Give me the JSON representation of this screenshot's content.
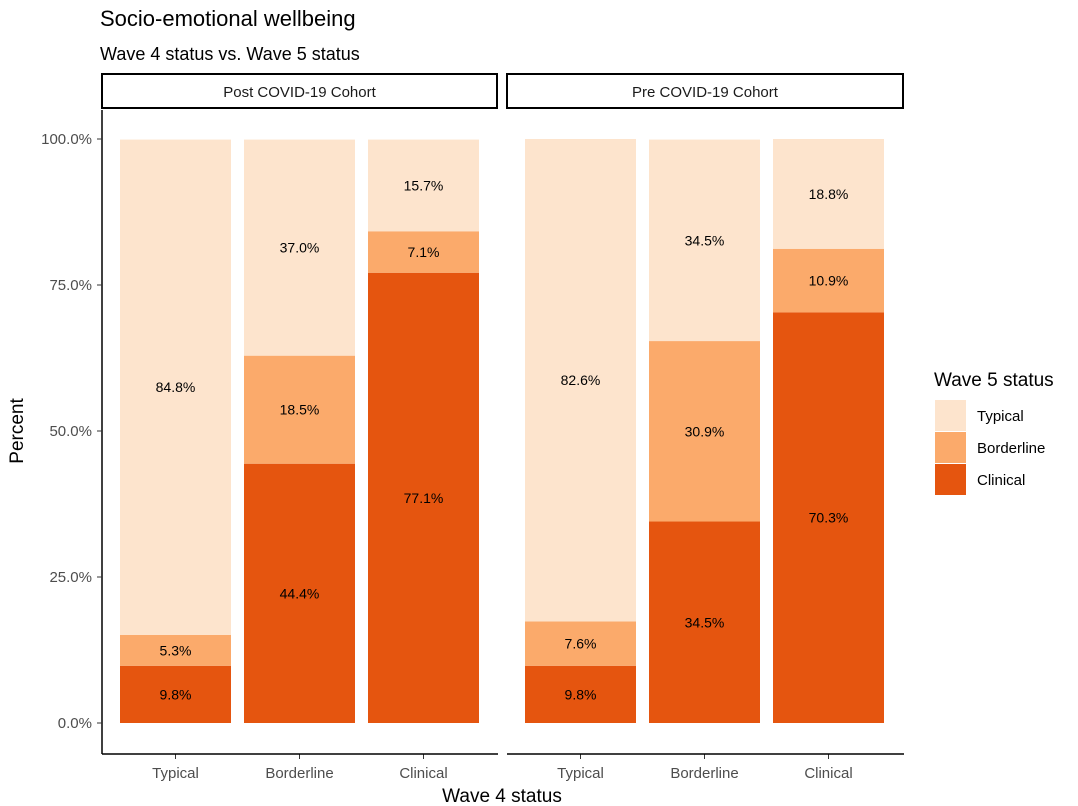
{
  "chart_data": {
    "type": "bar",
    "stacked": true,
    "title": "Socio-emotional wellbeing",
    "subtitle": "Wave 4 status vs. Wave 5 status",
    "xlabel": "Wave 4 status",
    "ylabel": "Percent",
    "ylim": [
      0,
      1
    ],
    "yticks": [
      "0.0%",
      "25.0%",
      "50.0%",
      "75.0%",
      "100.0%"
    ],
    "categories": [
      "Typical",
      "Borderline",
      "Clinical"
    ],
    "legend": {
      "title": "Wave 5 status",
      "position": "right",
      "entries": [
        "Typical",
        "Borderline",
        "Clinical"
      ]
    },
    "colors": {
      "Typical": "#fde4cd",
      "Borderline": "#fbaa6b",
      "Clinical": "#e5550f"
    },
    "grid": false,
    "panels": [
      {
        "name": "Post COVID-19 Cohort",
        "series": [
          {
            "name": "Clinical",
            "values": [
              0.098,
              0.444,
              0.771
            ],
            "labels": [
              "9.8%",
              "44.4%",
              "77.1%"
            ]
          },
          {
            "name": "Borderline",
            "values": [
              0.053,
              0.185,
              0.071
            ],
            "labels": [
              "5.3%",
              "18.5%",
              "7.1%"
            ]
          },
          {
            "name": "Typical",
            "values": [
              0.848,
              0.37,
              0.157
            ],
            "labels": [
              "84.8%",
              "37.0%",
              "15.7%"
            ]
          }
        ]
      },
      {
        "name": "Pre COVID-19 Cohort",
        "series": [
          {
            "name": "Clinical",
            "values": [
              0.098,
              0.345,
              0.703
            ],
            "labels": [
              "9.8%",
              "34.5%",
              "70.3%"
            ]
          },
          {
            "name": "Borderline",
            "values": [
              0.076,
              0.309,
              0.109
            ],
            "labels": [
              "7.6%",
              "30.9%",
              "10.9%"
            ]
          },
          {
            "name": "Typical",
            "values": [
              0.826,
              0.345,
              0.188
            ],
            "labels": [
              "82.6%",
              "34.5%",
              "18.8%"
            ]
          }
        ]
      }
    ]
  }
}
